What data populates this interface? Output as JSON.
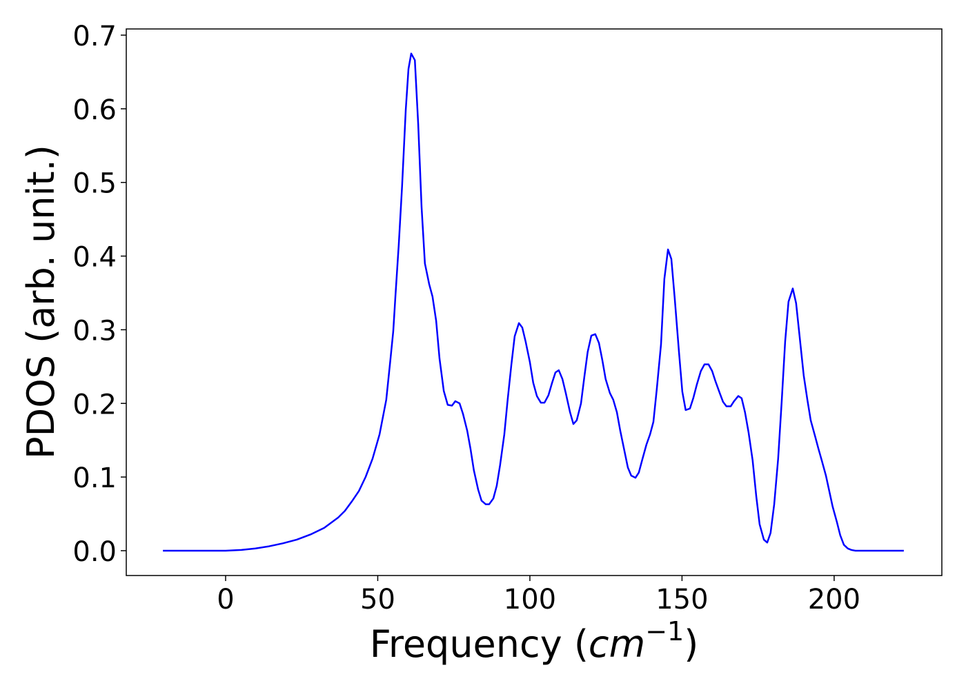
{
  "chart_data": {
    "type": "line",
    "xlabel": [
      "Frequency (",
      "cm",
      "−1",
      ")"
    ],
    "ylabel": "PDOS (arb. unit.)",
    "xlim": [
      -32.65,
      235.4
    ],
    "ylim": [
      -0.0337,
      0.7084
    ],
    "xticks": [
      0,
      50,
      100,
      150,
      200
    ],
    "yticks": [
      {
        "value": 0,
        "label": "0.0"
      },
      0.1,
      0.2,
      0.3,
      0.4,
      0.5,
      0.6,
      0.7
    ],
    "grid": false,
    "series": [
      {
        "color": "#0000ff",
        "x": [
          -20.6,
          0,
          5.2,
          9.8,
          14.3,
          18.8,
          23.4,
          27.9,
          32.4,
          37,
          39.2,
          41.5,
          43.8,
          46,
          48.3,
          50.6,
          52.8,
          54.2,
          55.1,
          55.8,
          56.9,
          58,
          59.2,
          60.1,
          61,
          62.2,
          63.3,
          64.4,
          65.5,
          66.9,
          68,
          69.2,
          70.3,
          71.7,
          73,
          74.4,
          75.5,
          76.9,
          78,
          79.4,
          80.5,
          81.6,
          83,
          84.1,
          85.5,
          86.6,
          88,
          89.1,
          90.2,
          91.6,
          92.7,
          93.9,
          95,
          96.4,
          97.5,
          98.6,
          100,
          101.1,
          102.3,
          103.6,
          104.8,
          106.1,
          107.3,
          108.4,
          109.5,
          110.7,
          111.8,
          113.2,
          114.3,
          115.4,
          116.8,
          117.9,
          119,
          120.2,
          121.5,
          122.7,
          123.8,
          124.9,
          126.3,
          127.4,
          128.6,
          129.7,
          131.1,
          132.2,
          133.3,
          134.7,
          135.8,
          136.9,
          138.3,
          139.5,
          140.6,
          141.7,
          143.1,
          144.2,
          145.4,
          146.5,
          147.6,
          149,
          150.1,
          151.2,
          152.6,
          153.7,
          154.9,
          156.2,
          157.4,
          158.7,
          159.9,
          161,
          162.4,
          163.5,
          164.6,
          166,
          167.1,
          168.5,
          169.6,
          170.7,
          171.9,
          173.2,
          174.4,
          175.5,
          176.9,
          178,
          179.1,
          180.3,
          181.6,
          182.8,
          183.9,
          185,
          186.4,
          187.5,
          188.7,
          190,
          191.2,
          192.3,
          193.7,
          194.8,
          195.9,
          197.3,
          198.4,
          199.5,
          200.9,
          202,
          203.2,
          204.5,
          205.7,
          207,
          222.9
        ],
        "values": [
          0,
          0,
          0.001,
          0.003,
          0.006,
          0.01,
          0.015,
          0.022,
          0.031,
          0.045,
          0.054,
          0.067,
          0.081,
          0.1,
          0.125,
          0.158,
          0.205,
          0.261,
          0.298,
          0.345,
          0.415,
          0.495,
          0.598,
          0.654,
          0.675,
          0.666,
          0.579,
          0.467,
          0.39,
          0.362,
          0.345,
          0.312,
          0.261,
          0.217,
          0.198,
          0.197,
          0.203,
          0.2,
          0.186,
          0.163,
          0.138,
          0.109,
          0.083,
          0.068,
          0.063,
          0.063,
          0.071,
          0.088,
          0.116,
          0.158,
          0.205,
          0.252,
          0.291,
          0.309,
          0.303,
          0.284,
          0.256,
          0.228,
          0.21,
          0.201,
          0.201,
          0.211,
          0.228,
          0.242,
          0.245,
          0.233,
          0.214,
          0.188,
          0.172,
          0.177,
          0.2,
          0.236,
          0.27,
          0.292,
          0.294,
          0.282,
          0.259,
          0.233,
          0.214,
          0.205,
          0.188,
          0.163,
          0.135,
          0.113,
          0.102,
          0.099,
          0.106,
          0.123,
          0.144,
          0.158,
          0.175,
          0.219,
          0.28,
          0.369,
          0.409,
          0.396,
          0.343,
          0.27,
          0.216,
          0.191,
          0.193,
          0.207,
          0.226,
          0.244,
          0.253,
          0.253,
          0.244,
          0.23,
          0.214,
          0.202,
          0.196,
          0.196,
          0.203,
          0.21,
          0.207,
          0.188,
          0.16,
          0.123,
          0.074,
          0.036,
          0.015,
          0.011,
          0.024,
          0.063,
          0.125,
          0.205,
          0.284,
          0.338,
          0.356,
          0.336,
          0.289,
          0.238,
          0.205,
          0.177,
          0.156,
          0.139,
          0.123,
          0.102,
          0.081,
          0.06,
          0.039,
          0.021,
          0.008,
          0.003,
          0.001,
          0,
          0
        ]
      }
    ]
  }
}
